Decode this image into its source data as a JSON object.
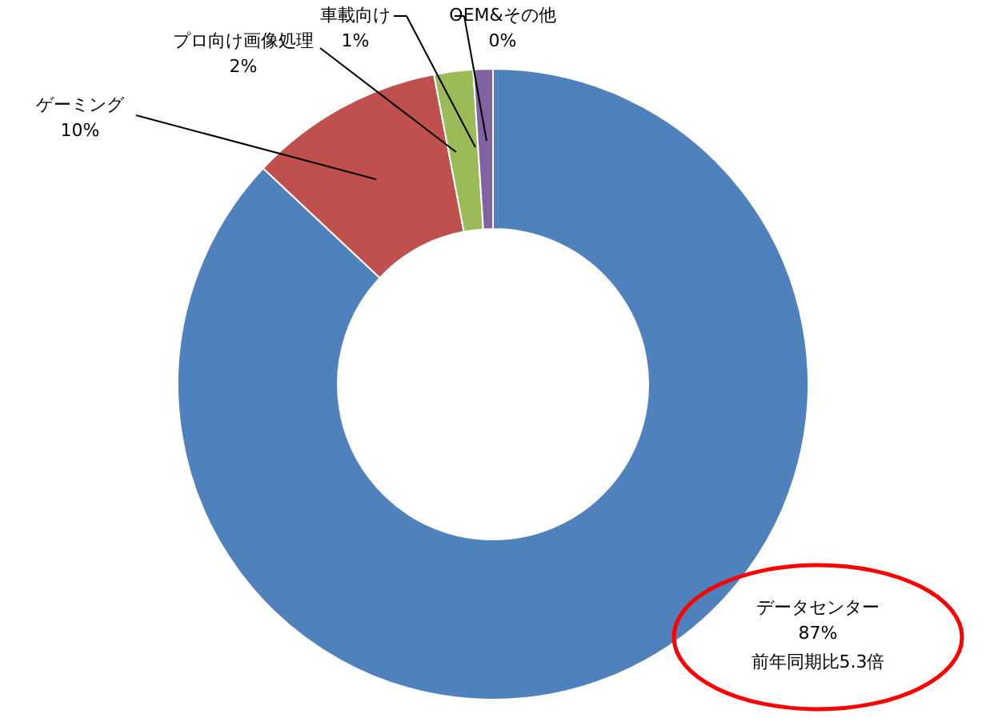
{
  "chart_data": {
    "type": "donut",
    "categories": [
      "データセンター",
      "ゲーミング",
      "プロ向け画像処理",
      "車載向け",
      "OEM&その他"
    ],
    "values": [
      87,
      10,
      2,
      1,
      0
    ],
    "value_labels": [
      "87%",
      "10%",
      "2%",
      "1%",
      "0%"
    ],
    "colors": [
      "#4f81bd",
      "#c0504d",
      "#9bbb59",
      "#8064a2",
      "#4bacc6"
    ],
    "annotations": [
      "前年同期比5.3倍"
    ]
  }
}
